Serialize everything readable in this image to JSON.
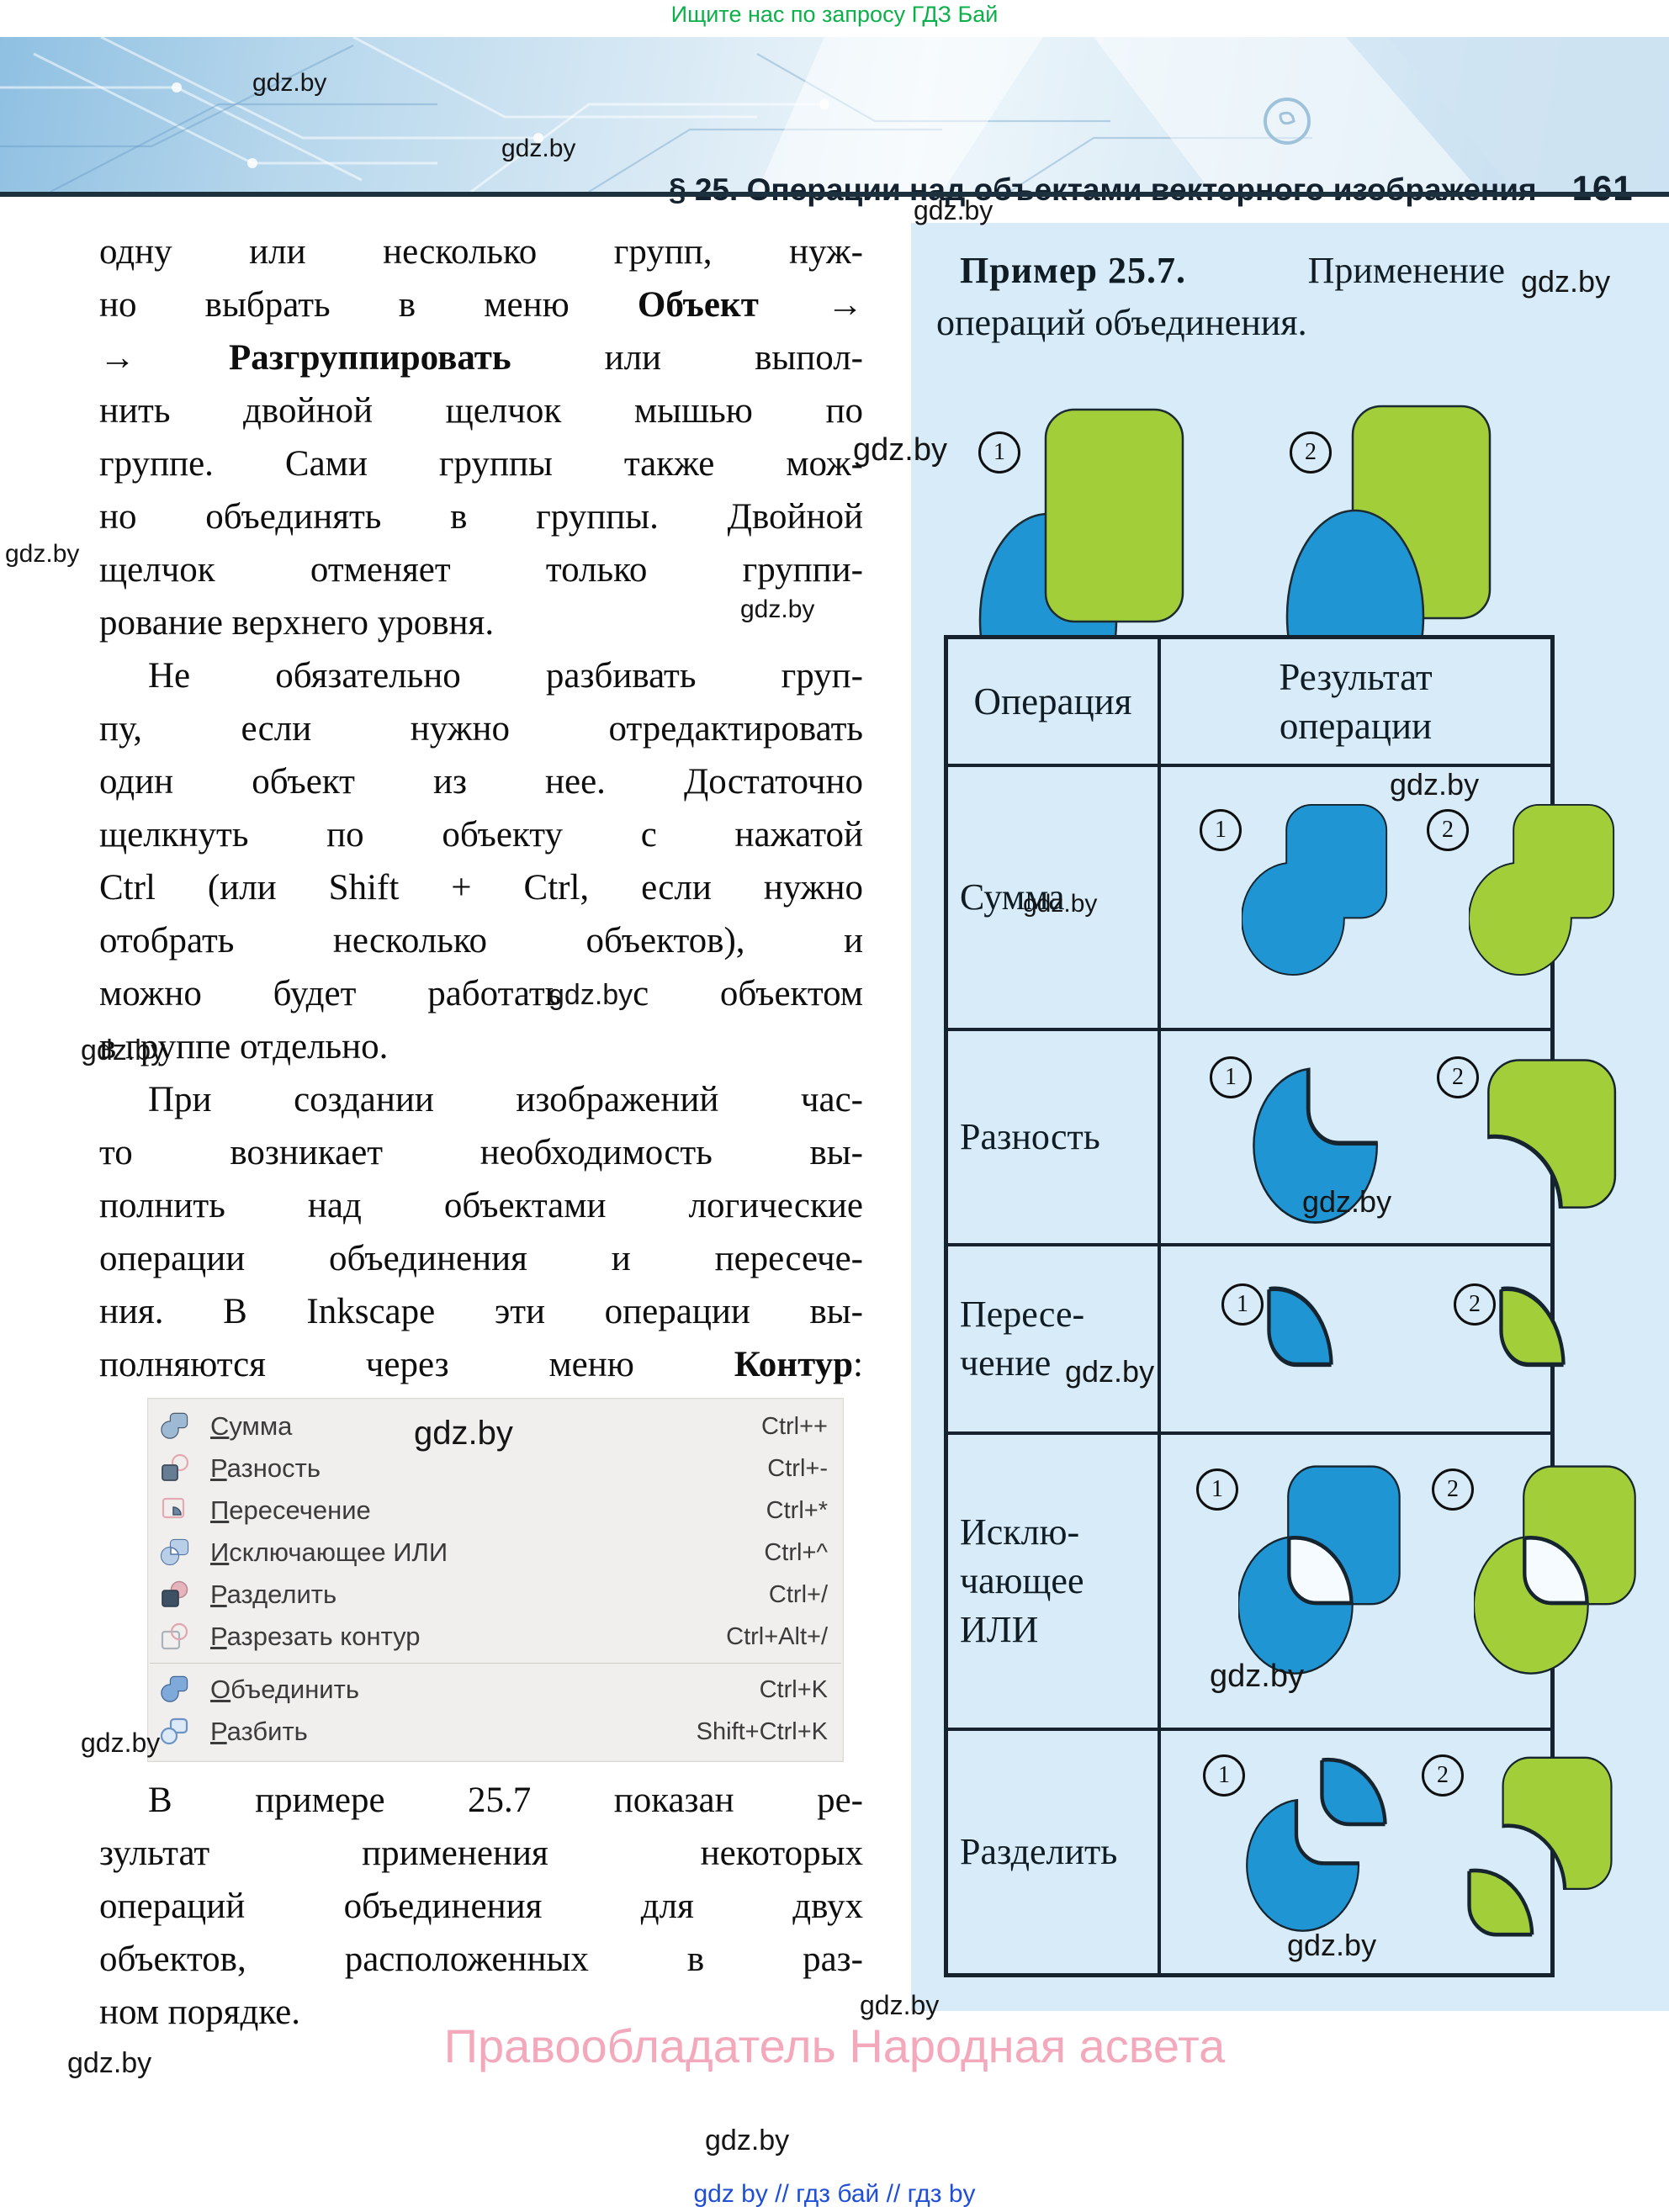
{
  "page": {
    "promo": "Ищите нас по запросу ГДЗ Бай",
    "header": {
      "section": "§ 25. Операции над объектами векторного изображения",
      "page_number": "161"
    },
    "watermark": "gdz.by",
    "footer": {
      "copyright": "Правообладатель Народная асвета",
      "links": "gdz by  //  гдз бай  //  гдз by"
    }
  },
  "article": {
    "paragraphs": [
      {
        "indent": false,
        "justify_last": false,
        "lines": [
          "одну или несколько групп, нуж-",
          "но выбрать в меню **Объект** →",
          "→ **Разгруппировать** или выпол-",
          "нить двойной щелчок мышью по",
          "группе. Сами группы также мож-",
          "но объединять в группы. Двойной",
          "щелчок отменяет только группи-",
          "рование верхнего уровня."
        ]
      },
      {
        "indent": true,
        "justify_last": false,
        "lines": [
          "Не обязательно разбивать груп-",
          "пу, если нужно отредактировать",
          "один объект из нее. Достаточно",
          "щелкнуть по объекту с нажатой",
          "Ctrl (или Shift + Ctrl, если нужно",
          "отобрать несколько объектов), и",
          "можно будет работать с объектом",
          "в группе отдельно."
        ]
      },
      {
        "indent": true,
        "justify_last": true,
        "lines": [
          "При создании изображений час-",
          "то возникает необходимость вы-",
          "полнить над объектами логические",
          "операции объединения и пересече-",
          "ния. В Inkscape эти операции вы-",
          "полняются через меню **Контур**:"
        ]
      },
      {
        "indent": true,
        "justify_last": false,
        "lines": [
          "В примере 25.7 показан ре-",
          "зультат применения некоторых",
          "операций объединения для двух",
          "объектов, расположенных в раз-",
          "ном порядке."
        ]
      }
    ]
  },
  "menu": {
    "items": [
      {
        "icon": "union-icon",
        "label": "Сумма",
        "shortcut": "Ctrl++"
      },
      {
        "icon": "difference-icon",
        "label": "Разность",
        "shortcut": "Ctrl+-"
      },
      {
        "icon": "intersection-icon",
        "label": "Пересечение",
        "shortcut": "Ctrl+*"
      },
      {
        "icon": "xor-icon",
        "label": "Исключающее ИЛИ",
        "shortcut": "Ctrl+^"
      },
      {
        "icon": "division-icon",
        "label": "Разделить",
        "shortcut": "Ctrl+/"
      },
      {
        "icon": "cut-path-icon",
        "label": "Разрезать контур",
        "shortcut": "Ctrl+Alt+/"
      },
      {
        "icon": "combine-icon",
        "label": "Объединить",
        "shortcut": "Ctrl+K",
        "group2": true
      },
      {
        "icon": "break-apart-icon",
        "label": "Разбить",
        "shortcut": "Shift+Ctrl+K",
        "group2": true
      }
    ]
  },
  "example": {
    "title_bold": "Пример 25.7.",
    "title_rest": "Применение",
    "title_line2": "операций объединения."
  },
  "figures": {
    "first": "1",
    "second": "2"
  },
  "table": {
    "col1_header": "Операция",
    "col2_header_lines": [
      "Результат",
      "операции"
    ],
    "rows": [
      {
        "label_lines": [
          "Сумма"
        ]
      },
      {
        "label_lines": [
          "Разность"
        ]
      },
      {
        "label_lines": [
          "Пересе-",
          "чение"
        ]
      },
      {
        "label_lines": [
          "Исклю-",
          "чающее",
          "ИЛИ"
        ]
      },
      {
        "label_lines": [
          "Разделить"
        ]
      }
    ]
  },
  "colors": {
    "object_blue": "#1f96d3",
    "object_green": "#a2ce39",
    "panel_background": "#d7ecf8",
    "table_border": "#16222e",
    "promo_green": "#0cb04a",
    "copyright_pink": "#f3a8bc",
    "footer_blue": "#1f4fd6"
  }
}
